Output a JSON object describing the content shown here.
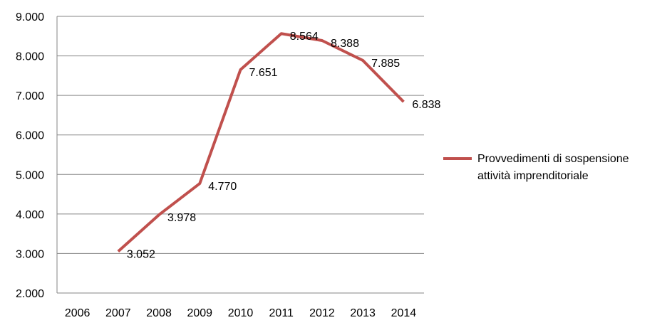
{
  "chart_data": {
    "type": "line",
    "title": "",
    "xlabel": "",
    "ylabel": "",
    "categories": [
      "2006",
      "2007",
      "2008",
      "2009",
      "2010",
      "2011",
      "2012",
      "2013",
      "2014"
    ],
    "series": [
      {
        "name": "Provvedimenti di sospensione attività imprenditoriale",
        "name_lines": [
          "Provvedimenti di sospensione",
          "attività imprenditoriale"
        ],
        "color": "#C0504D",
        "values": [
          null,
          3052,
          3978,
          4770,
          7651,
          8564,
          8388,
          7885,
          6838
        ],
        "labels": [
          "",
          "3.052",
          "3.978",
          "4.770",
          "7.651",
          "8.564",
          "8.388",
          "7.885",
          "6.838"
        ]
      }
    ],
    "ylim": [
      2000,
      9000
    ],
    "yticks": [
      2000,
      3000,
      4000,
      5000,
      6000,
      7000,
      8000,
      9000
    ],
    "ytick_labels": [
      "2.000",
      "3.000",
      "4.000",
      "5.000",
      "6.000",
      "7.000",
      "8.000",
      "9.000"
    ],
    "grid": true,
    "legend_position": "right"
  }
}
